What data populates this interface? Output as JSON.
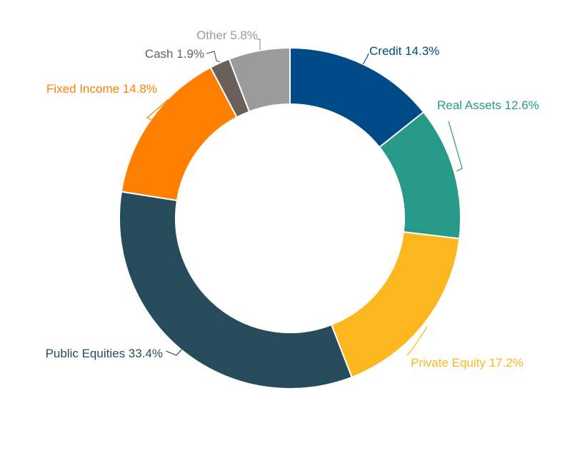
{
  "chart_data": {
    "type": "pie",
    "variant": "donut",
    "categories": [
      "Credit",
      "Real Assets",
      "Private Equity",
      "Public Equities",
      "Fixed Income",
      "Cash",
      "Other"
    ],
    "values": [
      14.3,
      12.6,
      17.2,
      33.4,
      14.8,
      1.9,
      5.8
    ],
    "unit": "%",
    "labels": [
      "Credit 14.3%",
      "Real Assets 12.6%",
      "Private Equity 17.2%",
      "Public Equities 33.4%",
      "Fixed Income 14.8%",
      "Cash 1.9%",
      "Other 5.8%"
    ],
    "colors": [
      "#004a87",
      "#269a87",
      "#fdb71e",
      "#264c5c",
      "#ff8000",
      "#6b5f59",
      "#9b9b9b"
    ],
    "label_colors": [
      "#004a87",
      "#269a87",
      "#fdb71e",
      "#264c5c",
      "#ff8000",
      "#6b5f59",
      "#9b9b9b"
    ],
    "legend": "none",
    "start": "top, clockwise"
  }
}
